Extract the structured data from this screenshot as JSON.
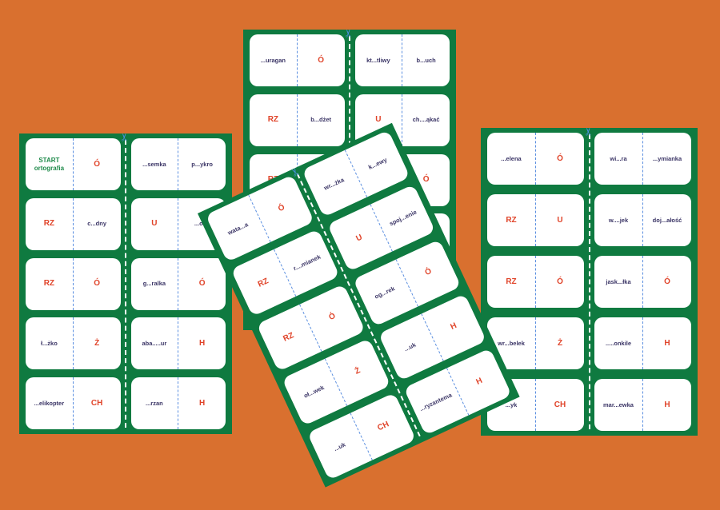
{
  "colors": {
    "background": "#d9702f",
    "sheet": "#0f7a40",
    "letter": "#e0442a",
    "word": "#3b3566",
    "start": "#1e8a4a",
    "divider": "#5b8fe0"
  },
  "icons": {
    "cut_marker": "scissors-icon"
  },
  "sheets": [
    {
      "id": "left",
      "rows": [
        [
          [
            "START\nortografia",
            "Ó"
          ],
          [
            "...semka",
            "p...ykro"
          ]
        ],
        [
          [
            "RZ",
            "c...dny"
          ],
          [
            "U",
            "...odk"
          ]
        ],
        [
          [
            "RZ",
            "Ó"
          ],
          [
            "g...ralka",
            "Ó"
          ]
        ],
        [
          [
            "ł...żko",
            "Ż"
          ],
          [
            "aba.....ur",
            "H"
          ]
        ],
        [
          [
            "...elikopter",
            "CH"
          ],
          [
            "...rzan",
            "H"
          ]
        ]
      ]
    },
    {
      "id": "top",
      "rows": [
        [
          [
            "...uragan",
            "Ó"
          ],
          [
            "kt...tliwy",
            "b...uch"
          ]
        ],
        [
          [
            "RZ",
            "b...dżet"
          ],
          [
            "U",
            "ch....ąkać"
          ]
        ],
        [
          [
            "RZ",
            ""
          ],
          [
            "",
            "Ó"
          ]
        ],
        [
          [
            "",
            ""
          ],
          [
            "",
            ""
          ]
        ],
        [
          [
            "",
            ""
          ],
          [
            "",
            ""
          ]
        ]
      ]
    },
    {
      "id": "right",
      "rows": [
        [
          [
            "...elena",
            "Ó"
          ],
          [
            "wi...ra",
            "...ymianka"
          ]
        ],
        [
          [
            "RZ",
            "U"
          ],
          [
            "w....jek",
            "doj...ałość"
          ]
        ],
        [
          [
            "RZ",
            "Ó"
          ],
          [
            "jask...łka",
            "Ó"
          ]
        ],
        [
          [
            "wr...belek",
            "Ż"
          ],
          [
            ".....onkile",
            "H"
          ]
        ],
        [
          [
            "...yk",
            "CH"
          ],
          [
            "mar...ewka",
            "H"
          ]
        ]
      ]
    },
    {
      "id": "tilted",
      "rows": [
        [
          [
            "wata...a",
            "Ó"
          ],
          [
            "wr...żka",
            "k...ewy"
          ]
        ],
        [
          [
            "RZ",
            "r....mianek"
          ],
          [
            "U",
            "spoj...enie"
          ]
        ],
        [
          [
            "RZ",
            "Ó"
          ],
          [
            "og...rek",
            "Ó"
          ]
        ],
        [
          [
            "oł...wek",
            "Ż"
          ],
          [
            "...uk",
            "H"
          ]
        ],
        [
          [
            "...uk",
            "CH"
          ],
          [
            "...ryzantema",
            "H"
          ]
        ]
      ]
    }
  ]
}
